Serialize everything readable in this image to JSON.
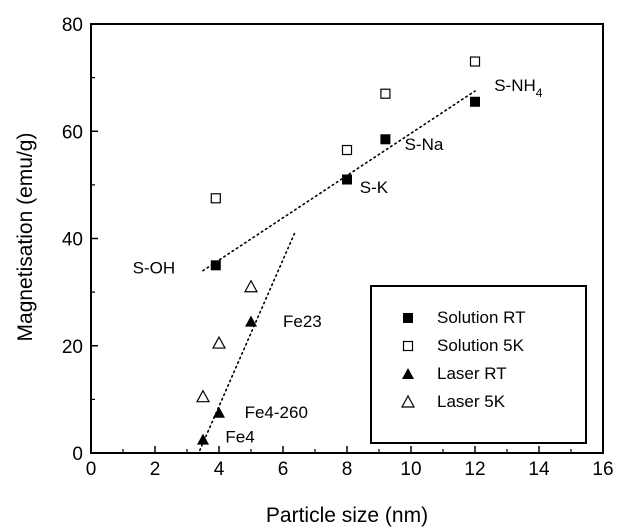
{
  "chart_data": {
    "type": "scatter",
    "title": "",
    "xlabel": "Particle size (nm)",
    "ylabel": "Magnetisation (emu/g)",
    "xlim": [
      0,
      16
    ],
    "ylim": [
      0,
      80
    ],
    "xticks": [
      "0",
      "2",
      "4",
      "6",
      "8",
      "10",
      "12",
      "14",
      "16"
    ],
    "yticks": [
      "0",
      "20",
      "40",
      "60",
      "80"
    ],
    "grid": false,
    "legend_position": "bottom-right",
    "series": [
      {
        "name": "Solution RT",
        "marker": "filled-square",
        "points": [
          {
            "x": 3.9,
            "y": 35
          },
          {
            "x": 8.0,
            "y": 51
          },
          {
            "x": 9.2,
            "y": 58.5
          },
          {
            "x": 12.0,
            "y": 65.5
          }
        ]
      },
      {
        "name": "Solution 5K",
        "marker": "open-square",
        "points": [
          {
            "x": 3.9,
            "y": 47.5
          },
          {
            "x": 8.0,
            "y": 56.5
          },
          {
            "x": 9.2,
            "y": 67
          },
          {
            "x": 12.0,
            "y": 73
          }
        ]
      },
      {
        "name": "Laser RT",
        "marker": "filled-triangle",
        "points": [
          {
            "x": 3.5,
            "y": 2.5
          },
          {
            "x": 4.0,
            "y": 7.5
          },
          {
            "x": 5.0,
            "y": 24.5
          }
        ]
      },
      {
        "name": "Laser 5K",
        "marker": "open-triangle",
        "points": [
          {
            "x": 3.5,
            "y": 10.5
          },
          {
            "x": 4.0,
            "y": 20.5
          },
          {
            "x": 5.0,
            "y": 31
          }
        ]
      }
    ],
    "fit_lines": [
      {
        "from": {
          "x": 3.5,
          "y": 34
        },
        "to": {
          "x": 12.0,
          "y": 67.5
        }
      },
      {
        "from": {
          "x": 3.4,
          "y": 0.5
        },
        "to": {
          "x": 6.4,
          "y": 41.5
        }
      }
    ],
    "annotations": [
      {
        "text": "S-OH",
        "x": 1.3,
        "y": 33.5
      },
      {
        "text": "S-K",
        "x": 8.4,
        "y": 48.5
      },
      {
        "text": "S-Na",
        "x": 9.8,
        "y": 56.5
      },
      {
        "text": "S-NH",
        "subscript": "4",
        "x": 12.6,
        "y": 67.5
      },
      {
        "text": "Fe23",
        "x": 6.0,
        "y": 23.5
      },
      {
        "text": "Fe4-260",
        "x": 4.8,
        "y": 6.5
      },
      {
        "text": "Fe4",
        "x": 4.2,
        "y": 2.0
      }
    ]
  }
}
